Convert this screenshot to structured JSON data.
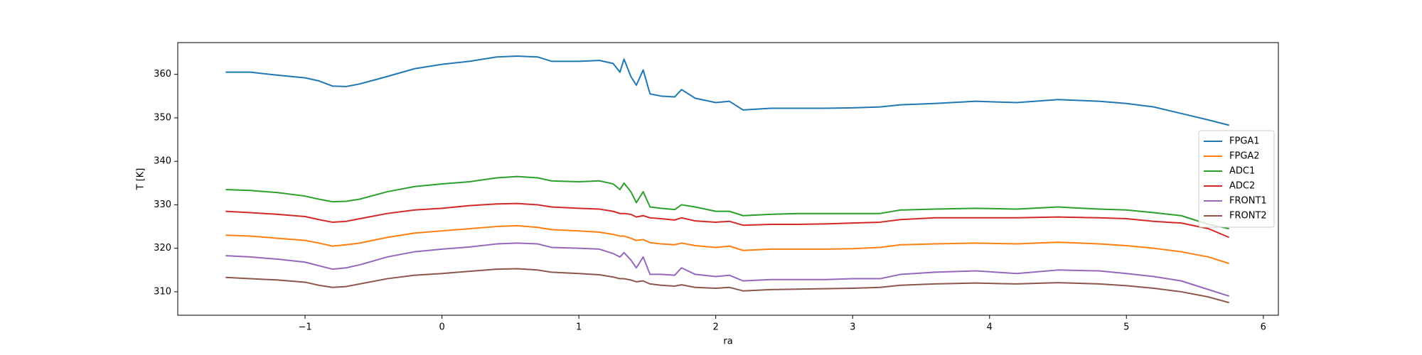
{
  "chart_data": {
    "type": "line",
    "xlabel": "ra",
    "ylabel": "T [K]",
    "x": [
      -1.58,
      -1.4,
      -1.2,
      -1.0,
      -0.9,
      -0.8,
      -0.7,
      -0.6,
      -0.4,
      -0.2,
      0,
      0.2,
      0.4,
      0.55,
      0.7,
      0.8,
      1.0,
      1.15,
      1.25,
      1.3,
      1.33,
      1.38,
      1.42,
      1.47,
      1.52,
      1.6,
      1.7,
      1.75,
      1.85,
      2.0,
      2.1,
      2.2,
      2.4,
      2.6,
      2.8,
      3.0,
      3.2,
      3.35,
      3.6,
      3.9,
      4.2,
      4.5,
      4.8,
      5.0,
      5.2,
      5.4,
      5.6,
      5.75
    ],
    "series": [
      {
        "name": "FPGA1",
        "color": "#1f77b4",
        "values": [
          360.5,
          360.5,
          359.8,
          359.2,
          358.5,
          357.3,
          357.2,
          357.8,
          359.5,
          361.3,
          362.3,
          363,
          364,
          364.2,
          364,
          363,
          363,
          363.2,
          362.5,
          360.5,
          363.5,
          359.5,
          357.5,
          361,
          355.5,
          355,
          354.8,
          356.5,
          354.5,
          353.5,
          353.8,
          351.8,
          352.2,
          352.2,
          352.2,
          352.3,
          352.5,
          353,
          353.3,
          353.8,
          353.5,
          354.2,
          353.8,
          353.3,
          352.5,
          351,
          349.5,
          348.3
        ]
      },
      {
        "name": "FPGA2",
        "color": "#ff7f0e",
        "values": [
          323,
          322.8,
          322.3,
          321.8,
          321.2,
          320.5,
          320.8,
          321.2,
          322.5,
          323.5,
          324,
          324.5,
          325,
          325.2,
          324.8,
          324.3,
          324,
          323.7,
          323.2,
          322.8,
          322.8,
          322.3,
          321.8,
          322,
          321.3,
          321,
          320.8,
          321.2,
          320.6,
          320.2,
          320.5,
          319.5,
          319.8,
          319.8,
          319.8,
          319.9,
          320.2,
          320.8,
          321,
          321.2,
          321,
          321.4,
          321,
          320.6,
          320,
          319.2,
          318,
          316.5
        ]
      },
      {
        "name": "ADC1",
        "color": "#2ca02c",
        "values": [
          333.5,
          333.3,
          332.8,
          332,
          331.3,
          330.7,
          330.8,
          331.3,
          333,
          334.2,
          334.8,
          335.3,
          336.2,
          336.5,
          336.2,
          335.5,
          335.3,
          335.5,
          334.8,
          333.5,
          335,
          333,
          330.5,
          333,
          329.5,
          329.2,
          328.9,
          330,
          329.5,
          328.5,
          328.5,
          327.5,
          327.8,
          328,
          328,
          328,
          328,
          328.8,
          329,
          329.2,
          329,
          329.5,
          329,
          328.8,
          328.2,
          327.5,
          325.5,
          324.5
        ]
      },
      {
        "name": "ADC2",
        "color": "#d62728",
        "values": [
          328.5,
          328.2,
          327.8,
          327.3,
          326.6,
          326,
          326.2,
          326.8,
          328,
          328.8,
          329.2,
          329.8,
          330.2,
          330.3,
          330,
          329.5,
          329.2,
          329,
          328.5,
          328,
          328,
          327.8,
          327.2,
          327.5,
          327,
          326.8,
          326.5,
          327,
          326.3,
          326,
          326.2,
          325.3,
          325.5,
          325.5,
          325.6,
          325.8,
          326,
          326.6,
          327,
          327,
          327,
          327.2,
          327,
          326.8,
          326.2,
          325.8,
          324.5,
          322.5
        ]
      },
      {
        "name": "FRONT1",
        "color": "#9467bd",
        "values": [
          318.3,
          318,
          317.5,
          316.8,
          316,
          315.2,
          315.5,
          316.2,
          318,
          319.2,
          319.8,
          320.3,
          321,
          321.2,
          321,
          320.2,
          320,
          319.8,
          318.8,
          318,
          319,
          317.3,
          315.5,
          318,
          314,
          314,
          313.8,
          315.5,
          314,
          313.5,
          313.8,
          312.5,
          312.8,
          312.8,
          312.8,
          313,
          313,
          314,
          314.5,
          314.8,
          314.2,
          315,
          314.8,
          314.2,
          313.5,
          312.5,
          310.5,
          309
        ]
      },
      {
        "name": "FRONT2",
        "color": "#8c564b",
        "values": [
          313.3,
          313,
          312.7,
          312.2,
          311.5,
          311,
          311.2,
          311.8,
          313,
          313.8,
          314.2,
          314.7,
          315.2,
          315.3,
          315,
          314.5,
          314.2,
          313.9,
          313.4,
          313,
          313,
          312.7,
          312.3,
          312.5,
          311.8,
          311.5,
          311.3,
          311.6,
          311,
          310.8,
          311,
          310.2,
          310.5,
          310.6,
          310.7,
          310.8,
          311,
          311.5,
          311.8,
          312,
          311.8,
          312.1,
          311.8,
          311.4,
          310.8,
          310,
          308.8,
          307.5
        ]
      }
    ],
    "xlim": [
      -1.93,
      6.11
    ],
    "xticks": [
      {
        "value": -1,
        "label": "−1"
      },
      0,
      1,
      2,
      3,
      4,
      5,
      6
    ],
    "ylim": [
      304.6,
      367.3
    ],
    "yticks": [
      310,
      320,
      330,
      340,
      350,
      360
    ],
    "grid": false,
    "legend": "center right"
  }
}
